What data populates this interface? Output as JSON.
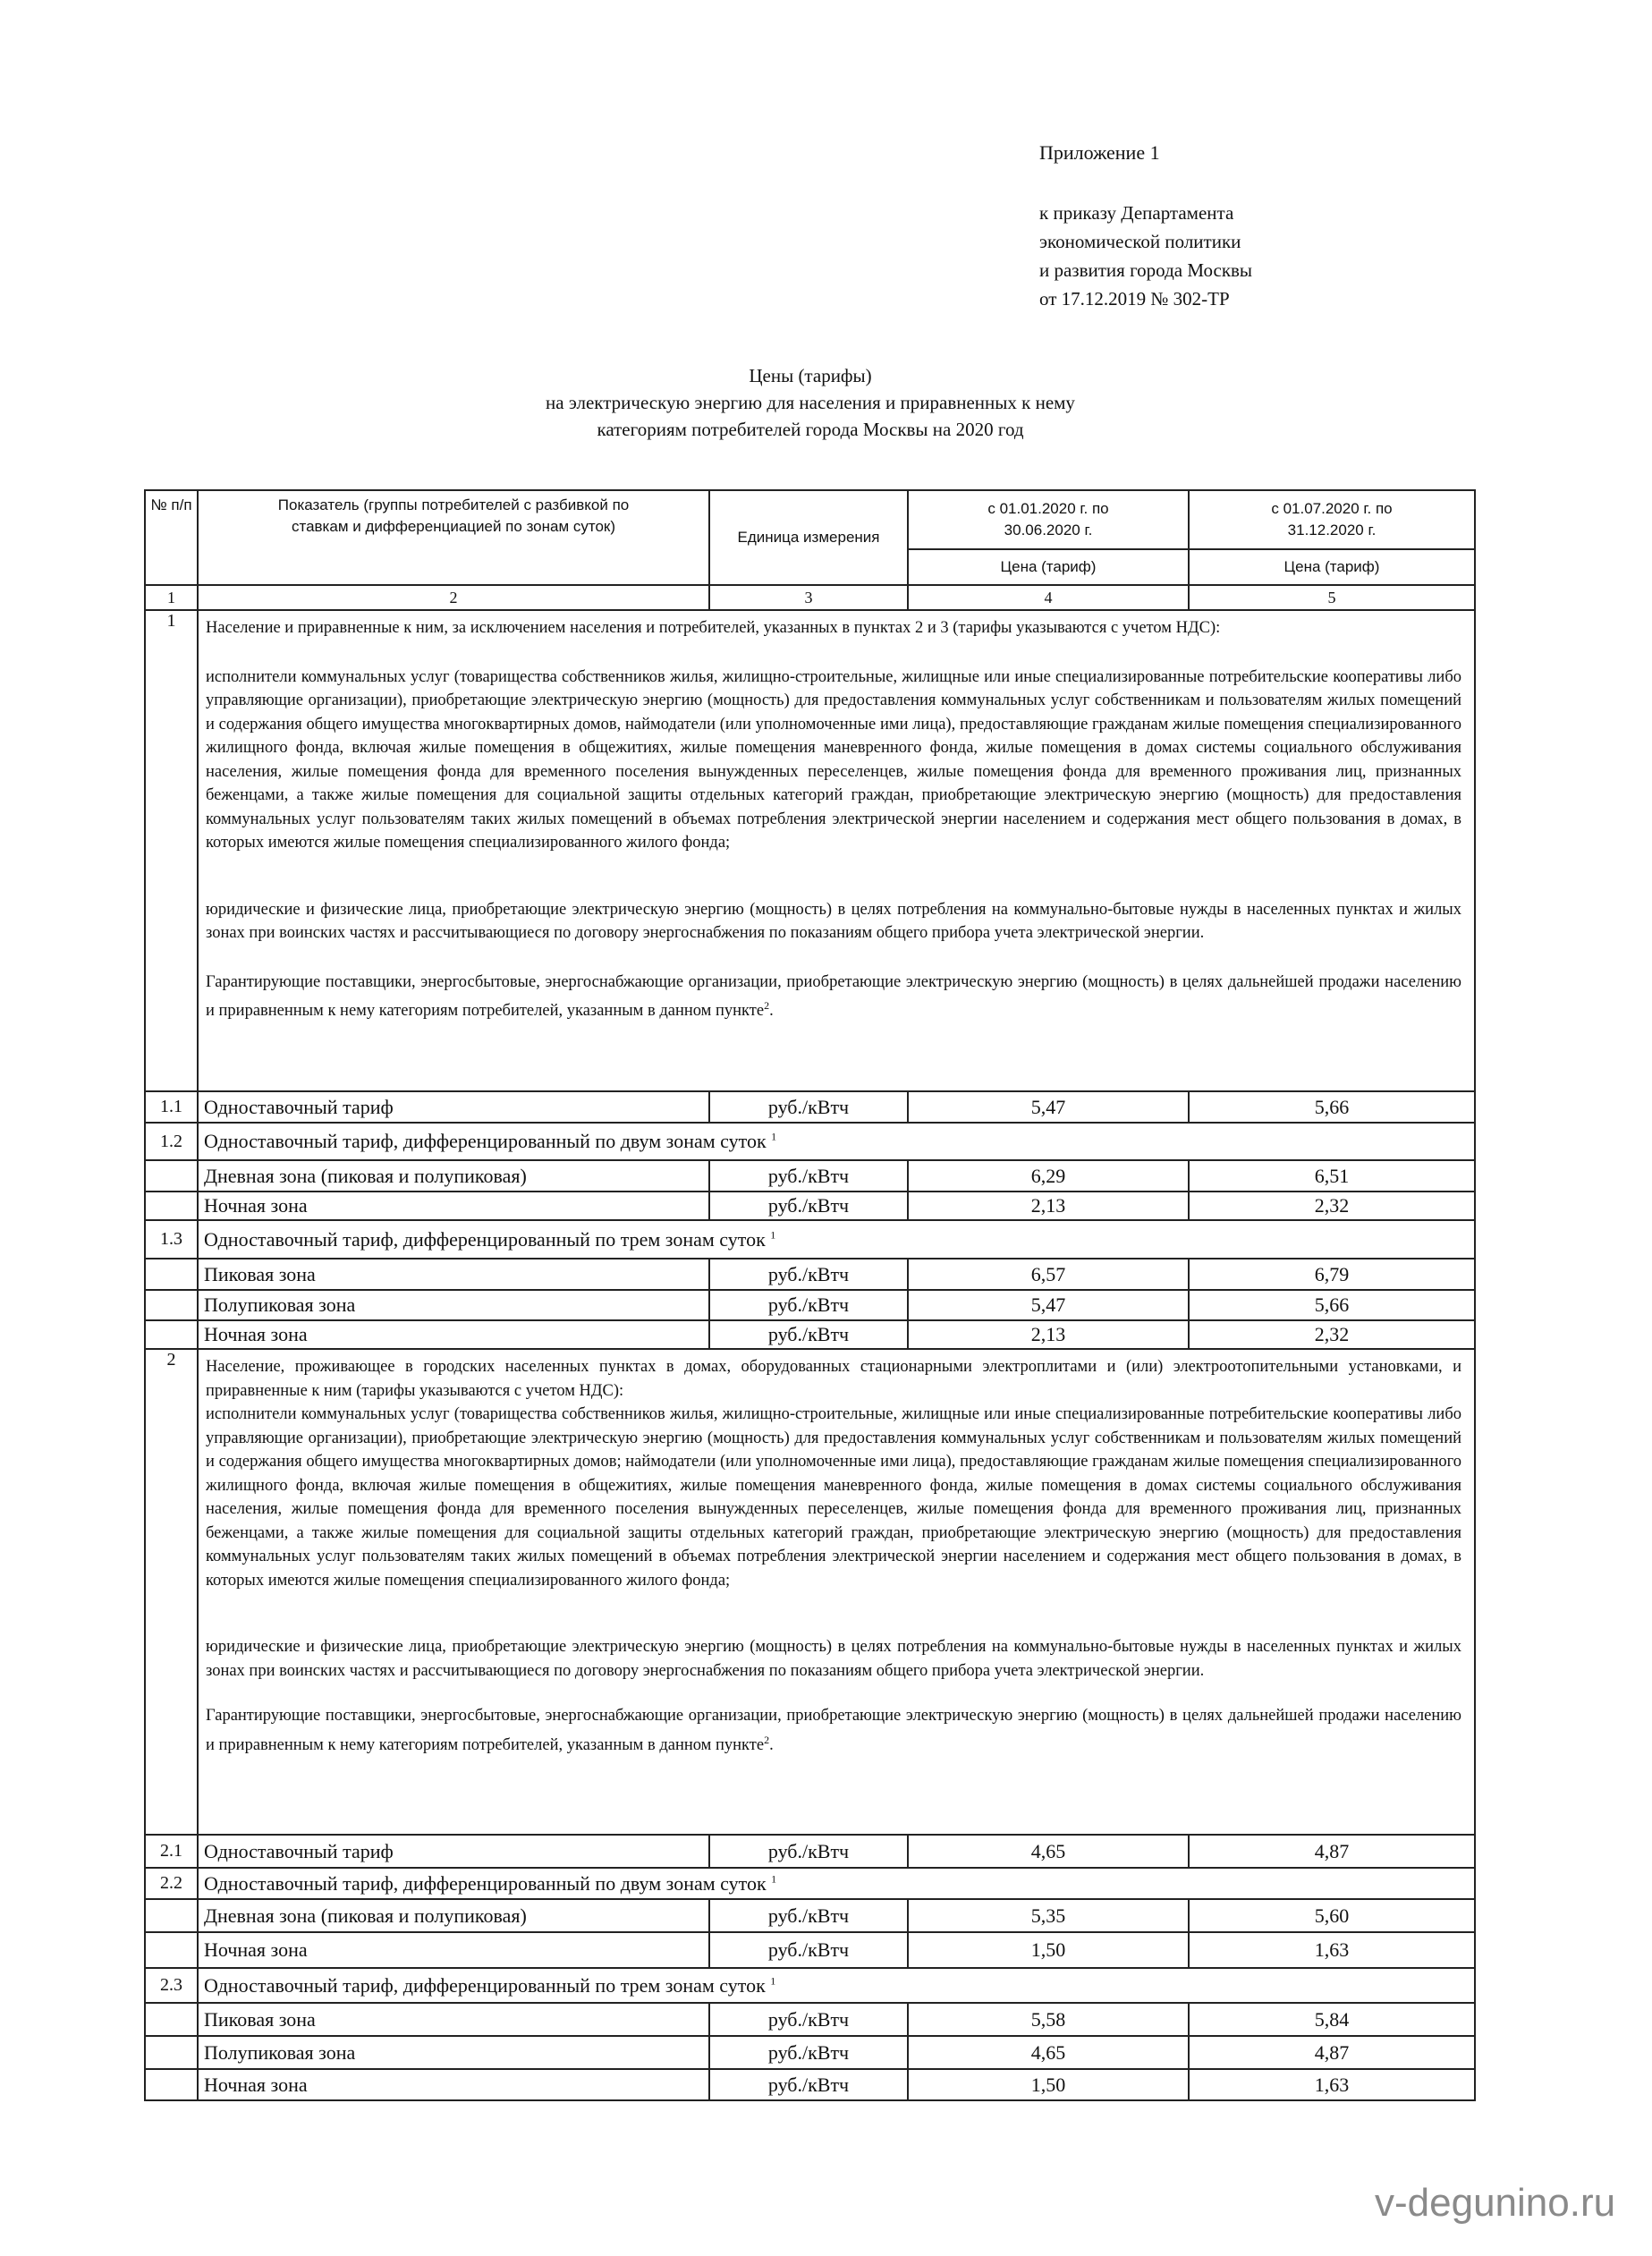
{
  "header": {
    "appendix": "Приложение 1",
    "order_lines": [
      "к приказу Департамента",
      "экономической политики",
      "и развития города Москвы",
      "от 17.12.2019 № 302-ТР"
    ],
    "title_lines": [
      "Цены (тарифы)",
      "на электрическую энергию для населения и приравненных к нему",
      "категориям потребителей города Москвы на 2020 год"
    ]
  },
  "table": {
    "col_headers": {
      "num": "№ п/п",
      "indicator": "Показатель (группы потребителей с разбивкой по ставкам и дифференциацией по зонам суток)",
      "unit": "Единица измерения",
      "period1": "с 01.01.2020 г. по 30.06.2020 г.",
      "period2": "с 01.07.2020 г. по 31.12.2020 г.",
      "price1": "Цена (тариф)",
      "price2": "Цена (тариф)"
    },
    "col_numbers": [
      "1",
      "2",
      "3",
      "4",
      "5"
    ],
    "sections": [
      {
        "num": "1",
        "paragraphs": [
          "Население и приравненные к ним, за исключением населения и потребителей, указанных в пунктах 2 и 3 (тарифы указываются с учетом НДС):",
          "исполнители коммунальных услуг (товарищества собственников жилья, жилищно-строительные, жилищные или иные специализированные потребительские кооперативы либо управляющие организации), приобретающие электрическую энергию (мощность) для предоставления коммунальных услуг собственникам и пользователям жилых помещений и содержания общего имущества многоквартирных домов, наймодатели (или уполномоченные ими лица), предоставляющие гражданам жилые помещения специализированного жилищного фонда, включая жилые помещения в общежитиях, жилые помещения маневренного фонда, жилые помещения в домах системы социального обслуживания населения, жилые помещения фонда для временного поселения вынужденных переселенцев, жилые помещения фонда для временного проживания лиц, признанных беженцами, а также жилые помещения для социальной защиты отдельных категорий граждан, приобретающие электрическую энергию (мощность) для предоставления коммунальных услуг пользователям таких жилых помещений в объемах потребления электрической энергии населением и содержания мест общего пользования в домах, в которых имеются жилые помещения специализированного жилого фонда;",
          "юридические и физические лица, приобретающие электрическую энергию (мощность) в целях потребления на коммунально-бытовые нужды в населенных пунктах и жилых зонах при воинских частях и рассчитывающиеся по договору энергоснабжения по показаниям общего прибора учета электрической энергии.",
          "Гарантирующие поставщики, энергосбытовые, энергоснабжающие организации, приобретающие электрическую энергию (мощность) в целях дальнейшей продажи населению и приравненным к нему категориям потребителей, указанным в данном пункте"
        ],
        "footnote": "2",
        "rows": [
          {
            "num": "1.1",
            "label": "Одноставочный тариф",
            "unit": "руб./кВтч",
            "v1": "5,47",
            "v2": "5,66"
          },
          {
            "num": "1.2",
            "label": "Одноставочный тариф, дифференцированный по двум зонам суток",
            "sup": "1",
            "header": true
          },
          {
            "num": "",
            "label": "Дневная зона (пиковая и полупиковая)",
            "unit": "руб./кВтч",
            "v1": "6,29",
            "v2": "6,51"
          },
          {
            "num": "",
            "label": "Ночная зона",
            "unit": "руб./кВтч",
            "v1": "2,13",
            "v2": "2,32"
          },
          {
            "num": "1.3",
            "label": "Одноставочный тариф, дифференцированный по трем зонам суток",
            "sup": "1",
            "header": true
          },
          {
            "num": "",
            "label": "Пиковая зона",
            "unit": "руб./кВтч",
            "v1": "6,57",
            "v2": "6,79"
          },
          {
            "num": "",
            "label": "Полупиковая зона",
            "unit": "руб./кВтч",
            "v1": "5,47",
            "v2": "5,66"
          },
          {
            "num": "",
            "label": "Ночная зона",
            "unit": "руб./кВтч",
            "v1": "2,13",
            "v2": "2,32"
          }
        ]
      },
      {
        "num": "2",
        "paragraphs": [
          "Население, проживающее в городских населенных пунктах в домах, оборудованных стационарными электроплитами и (или) электроотопительными установками, и приравненные к ним (тарифы указываются с учетом НДС):",
          "исполнители коммунальных услуг (товарищества собственников жилья, жилищно-строительные, жилищные или иные специализированные потребительские кооперативы либо управляющие организации), приобретающие электрическую энергию (мощность) для предоставления коммунальных услуг собственникам и пользователям жилых помещений и содержания общего имущества многоквартирных домов; наймодатели (или уполномоченные ими лица), предоставляющие гражданам жилые помещения специализированного жилищного фонда, включая жилые помещения в общежитиях, жилые помещения маневренного фонда, жилые помещения в домах системы социального обслуживания населения, жилые помещения фонда для временного поселения вынужденных переселенцев, жилые помещения фонда для временного проживания лиц, признанных беженцами, а также жилые помещения для социальной защиты отдельных категорий граждан, приобретающие электрическую энергию (мощность) для предоставления коммунальных услуг пользователям таких жилых помещений в объемах потребления электрической энергии населением и содержания мест общего пользования в домах, в которых имеются жилые помещения специализированного жилого фонда;",
          "юридические и физические лица, приобретающие электрическую энергию (мощность) в целях потребления на коммунально-бытовые нужды в населенных пунктах и жилых зонах при воинских частях и рассчитывающиеся по договору энергоснабжения по показаниям общего прибора учета электрической энергии.",
          "Гарантирующие поставщики, энергосбытовые, энергоснабжающие организации, приобретающие электрическую энергию (мощность) в целях дальнейшей продажи населению и приравненным к нему категориям потребителей, указанным в данном пункте"
        ],
        "footnote": "2",
        "rows": [
          {
            "num": "2.1",
            "label": "Одноставочный тариф",
            "unit": "руб./кВтч",
            "v1": "4,65",
            "v2": "4,87"
          },
          {
            "num": "2.2",
            "label": "Одноставочный тариф, дифференцированный по двум зонам суток",
            "sup": "1",
            "header": true
          },
          {
            "num": "",
            "label": "Дневная зона (пиковая и полупиковая)",
            "unit": "руб./кВтч",
            "v1": "5,35",
            "v2": "5,60"
          },
          {
            "num": "",
            "label": "Ночная зона",
            "unit": "руб./кВтч",
            "v1": "1,50",
            "v2": "1,63"
          },
          {
            "num": "2.3",
            "label": "Одноставочный тариф, дифференцированный по трем зонам суток",
            "sup": "1",
            "header": true
          },
          {
            "num": "",
            "label": "Пиковая зона",
            "unit": "руб./кВтч",
            "v1": "5,58",
            "v2": "5,84"
          },
          {
            "num": "",
            "label": "Полупиковая зона",
            "unit": "руб./кВтч",
            "v1": "4,65",
            "v2": "4,87"
          },
          {
            "num": "",
            "label": "Ночная зона",
            "unit": "руб./кВтч",
            "v1": "1,50",
            "v2": "1,63"
          }
        ]
      }
    ]
  },
  "watermark": "v-degunino.ru"
}
